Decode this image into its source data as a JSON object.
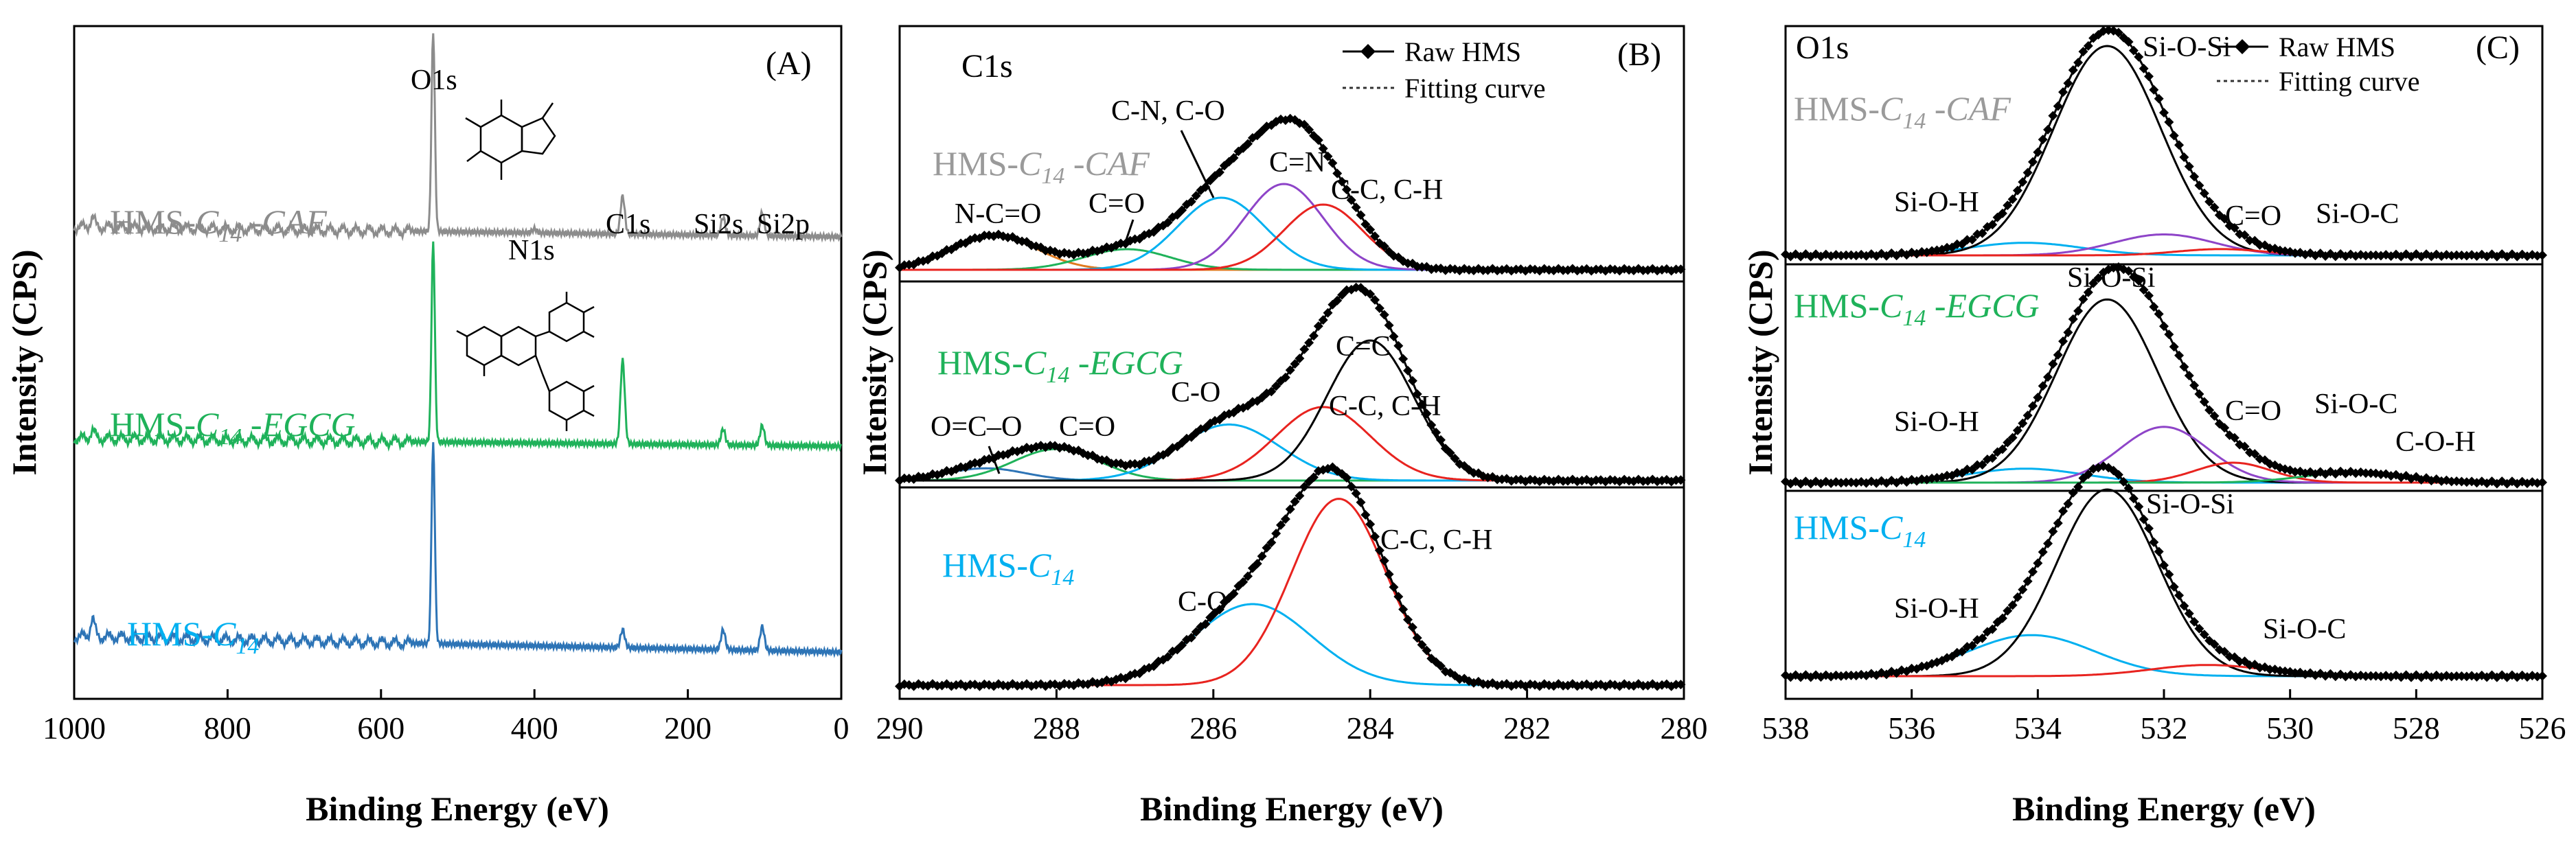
{
  "chart_data": [
    {
      "type": "line",
      "panel_label": "(A)",
      "title": "",
      "xlabel": "Binding Energy (eV)",
      "ylabel": "Intensity (CPS)",
      "xlim": [
        1000,
        0
      ],
      "x_reversed": true,
      "xticks": [
        "1000",
        "800",
        "600",
        "400",
        "200",
        "0"
      ],
      "peak_labels": [
        "O1s",
        "N1s",
        "C1s",
        "Si2s",
        "Si2p"
      ],
      "series": [
        {
          "name_prefix": "HMS-",
          "name_sub": "C",
          "name_subscript": "14",
          "name_suffix": " -CAF",
          "color": "#8c8c8c",
          "peaks": [
            {
              "x": 976,
              "h": 0.05
            },
            {
              "x": 532,
              "h": 1.0
            },
            {
              "x": 400,
              "h": 0.02
            },
            {
              "x": 285,
              "h": 0.19
            },
            {
              "x": 154,
              "h": 0.09
            },
            {
              "x": 103,
              "h": 0.12
            }
          ],
          "baseline_start": 0.05,
          "baseline_end": 0.0
        },
        {
          "name_prefix": "HMS-",
          "name_sub": "C",
          "name_subscript": "14",
          "name_suffix": " -EGCG",
          "color": "#1fb25a",
          "peaks": [
            {
              "x": 976,
              "h": 0.04
            },
            {
              "x": 532,
              "h": 1.0
            },
            {
              "x": 285,
              "h": 0.42
            },
            {
              "x": 154,
              "h": 0.08
            },
            {
              "x": 103,
              "h": 0.1
            }
          ],
          "baseline_start": 0.04,
          "baseline_end": 0.0
        },
        {
          "name_prefix": "HMS-",
          "name_sub": "C",
          "name_subscript": "14",
          "name_suffix": "",
          "color": "#2d74b6",
          "peaks": [
            {
              "x": 976,
              "h": 0.09
            },
            {
              "x": 532,
              "h": 1.0
            },
            {
              "x": 285,
              "h": 0.09
            },
            {
              "x": 154,
              "h": 0.1
            },
            {
              "x": 103,
              "h": 0.12
            }
          ],
          "baseline_start": 0.08,
          "baseline_end": 0.0
        }
      ],
      "label_colors": [
        "#8c8c8c",
        "#1fb25a",
        "#00b0f0"
      ]
    },
    {
      "type": "line",
      "panel_label": "(B)",
      "title": "C1s",
      "xlabel": "Binding Energy (eV)",
      "ylabel": "Intensity (CPS)",
      "xlim": [
        290,
        280
      ],
      "x_reversed": true,
      "xticks": [
        "290",
        "288",
        "286",
        "284",
        "282",
        "280"
      ],
      "legend": [
        "Raw HMS",
        "Fitting curve"
      ],
      "samples": [
        {
          "name_prefix": "HMS-",
          "name_sub": "C",
          "name_subscript": "14",
          "name_suffix": " -CAF",
          "label_color": "#9a9a9a",
          "components": [
            {
              "label": "N-C=O",
              "center": 288.8,
              "height": 0.2,
              "width": 0.55,
              "color": "#e07a1f"
            },
            {
              "label": "C=O",
              "center": 287.1,
              "height": 0.12,
              "width": 0.55,
              "color": "#1fb25a"
            },
            {
              "label": "C-N, C-O",
              "center": 285.9,
              "height": 0.42,
              "width": 0.55,
              "color": "#00b0f0"
            },
            {
              "label": "C=N",
              "center": 285.1,
              "height": 0.5,
              "width": 0.5,
              "color": "#8e44c8"
            },
            {
              "label": "C-C, C-H",
              "center": 284.6,
              "height": 0.38,
              "width": 0.5,
              "color": "#e8231f"
            }
          ]
        },
        {
          "name_prefix": "HMS-",
          "name_sub": "C",
          "name_subscript": "14",
          "name_suffix": " -EGCG",
          "label_color": "#1fb25a",
          "components": [
            {
              "label": "O=C–O",
              "center": 288.9,
              "height": 0.07,
              "width": 0.5,
              "color": "#2d74b6"
            },
            {
              "label": "C=O",
              "center": 288.0,
              "height": 0.18,
              "width": 0.55,
              "color": "#1fb25a"
            },
            {
              "label": "C-O",
              "center": 285.8,
              "height": 0.32,
              "width": 0.65,
              "color": "#00b0f0"
            },
            {
              "label": "C-C, C-H",
              "center": 284.6,
              "height": 0.42,
              "width": 0.6,
              "color": "#e8231f"
            },
            {
              "label": "C=C",
              "center": 284.0,
              "height": 0.8,
              "width": 0.55,
              "color": "#000000"
            }
          ]
        },
        {
          "name_prefix": "HMS-",
          "name_sub": "C",
          "name_subscript": "14",
          "name_suffix": "",
          "label_color": "#00b0f0",
          "components": [
            {
              "label": "C-O",
              "center": 285.5,
              "height": 0.4,
              "width": 0.75,
              "color": "#00b0f0"
            },
            {
              "label": "C-C, C-H",
              "center": 284.4,
              "height": 0.92,
              "width": 0.6,
              "color": "#e8231f"
            }
          ]
        }
      ]
    },
    {
      "type": "line",
      "panel_label": "(C)",
      "title": "O1s",
      "xlabel": "Binding Energy (eV)",
      "ylabel": "Intensity (CPS)",
      "xlim": [
        538,
        526
      ],
      "x_reversed": true,
      "xticks": [
        "538",
        "536",
        "534",
        "532",
        "530",
        "528",
        "526"
      ],
      "legend": [
        "Raw HMS",
        "Fitting curve"
      ],
      "samples": [
        {
          "name_prefix": "HMS-",
          "name_sub": "C",
          "name_subscript": "14",
          "name_suffix": " -CAF",
          "label_color": "#9a9a9a",
          "components": [
            {
              "label": "Si-O-H",
              "center": 534.2,
              "height": 0.06,
              "width": 0.9,
              "color": "#00b0f0"
            },
            {
              "label": "Si-O-Si",
              "center": 532.9,
              "height": 1.0,
              "width": 0.85,
              "color": "#000000"
            },
            {
              "label": "C=O",
              "center": 532.0,
              "height": 0.1,
              "width": 0.8,
              "color": "#8e44c8"
            },
            {
              "label": "Si-O-C",
              "center": 531.1,
              "height": 0.03,
              "width": 0.7,
              "color": "#e8231f"
            }
          ]
        },
        {
          "name_prefix": "HMS-",
          "name_sub": "C",
          "name_subscript": "14",
          "name_suffix": " -EGCG",
          "label_color": "#1fb25a",
          "components": [
            {
              "label": "Si-O-H",
              "center": 534.2,
              "height": 0.07,
              "width": 0.9,
              "color": "#00b0f0"
            },
            {
              "label": "Si-O-Si",
              "center": 532.9,
              "height": 0.92,
              "width": 0.8,
              "color": "#000000"
            },
            {
              "label": "C=O",
              "center": 532.0,
              "height": 0.28,
              "width": 0.7,
              "color": "#8e44c8"
            },
            {
              "label": "Si-O-C",
              "center": 530.9,
              "height": 0.1,
              "width": 0.6,
              "color": "#e8231f"
            },
            {
              "label": "C-O-H",
              "center": 529.0,
              "height": 0.05,
              "width": 0.8,
              "color": "#1fb25a"
            }
          ]
        },
        {
          "name_prefix": "HMS-",
          "name_sub": "C",
          "name_subscript": "14",
          "name_suffix": "",
          "label_color": "#00b0f0",
          "components": [
            {
              "label": "Si-O-H",
              "center": 534.1,
              "height": 0.22,
              "width": 1.0,
              "color": "#00b0f0"
            },
            {
              "label": "Si-O-Si",
              "center": 532.9,
              "height": 1.0,
              "width": 0.8,
              "color": "#000000"
            },
            {
              "label": "Si-O-C",
              "center": 531.3,
              "height": 0.06,
              "width": 0.9,
              "color": "#e8231f"
            }
          ]
        }
      ]
    }
  ],
  "colors": {
    "raw_marker": "#000000",
    "fit_line": "#333333",
    "axis": "#000000"
  }
}
